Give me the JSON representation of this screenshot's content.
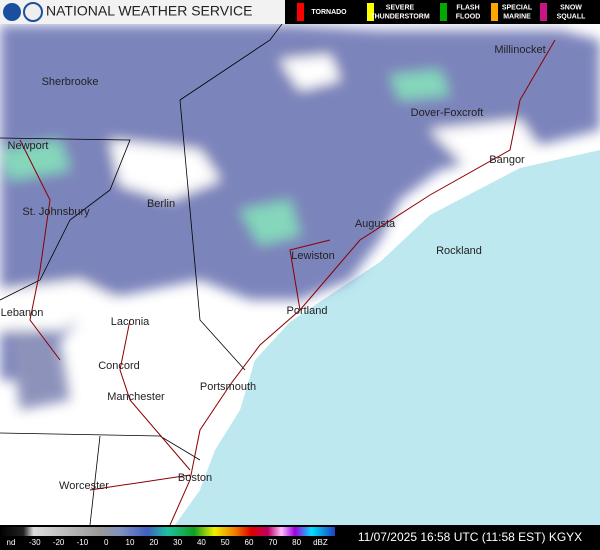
{
  "header": {
    "agency": "NATIONAL WEATHER SERVICE"
  },
  "warnings": [
    {
      "lines": [
        "TORNADO"
      ],
      "color": "#ff0000"
    },
    {
      "lines": [
        "SEVERE",
        "THUNDERSTORM"
      ],
      "color": "#ffff00"
    },
    {
      "lines": [
        "FLASH",
        "FLOOD"
      ],
      "color": "#00aa00"
    },
    {
      "lines": [
        "SPECIAL",
        "MARINE"
      ],
      "color": "#ffa500"
    },
    {
      "lines": [
        "SNOW",
        "SQUALL"
      ],
      "color": "#c71585"
    }
  ],
  "cities": [
    "Millinocket",
    "Sherbrooke",
    "Dover-Foxcroft",
    "Newport",
    "Bangor",
    "St. Johnsbury",
    "Berlin",
    "Augusta",
    "Rockland",
    "Lewiston",
    "Lebanon",
    "Portland",
    "Laconia",
    "Concord",
    "Portsmouth",
    "Manchester",
    "Worcester",
    "Boston"
  ],
  "scale": {
    "labels": [
      "nd",
      "-30",
      "-20",
      "-10",
      "0",
      "10",
      "20",
      "30",
      "40",
      "50",
      "60",
      "70",
      "80",
      "dBZ"
    ]
  },
  "footer": {
    "timestamp": "11/07/2025 16:58 UTC (11:58 EST) KGYX"
  }
}
